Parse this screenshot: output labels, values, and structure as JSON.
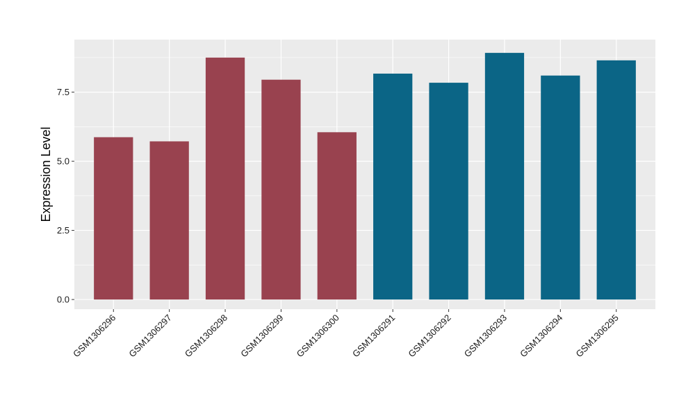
{
  "chart_data": {
    "type": "bar",
    "title": "",
    "xlabel": "",
    "ylabel": "Expression Level",
    "ylim": [
      -0.35,
      9.4
    ],
    "yticks": [
      0.0,
      2.5,
      5.0,
      7.5
    ],
    "ytick_labels": [
      "0.0",
      "2.5",
      "5.0",
      "7.5"
    ],
    "grid": true,
    "legend": "none",
    "categories": [
      "GSM1306296",
      "GSM1306297",
      "GSM1306298",
      "GSM1306299",
      "GSM1306300",
      "GSM1306291",
      "GSM1306292",
      "GSM1306293",
      "GSM1306294",
      "GSM1306295"
    ],
    "values": [
      5.87,
      5.72,
      8.75,
      7.95,
      6.05,
      8.17,
      7.84,
      8.92,
      8.1,
      8.65
    ],
    "bar_colors": [
      "#99424f",
      "#99424f",
      "#99424f",
      "#99424f",
      "#99424f",
      "#0b6586",
      "#0b6586",
      "#0b6586",
      "#0b6586",
      "#0b6586"
    ],
    "panel_background": "#ebebeb",
    "gridline_color": "#ffffff"
  }
}
